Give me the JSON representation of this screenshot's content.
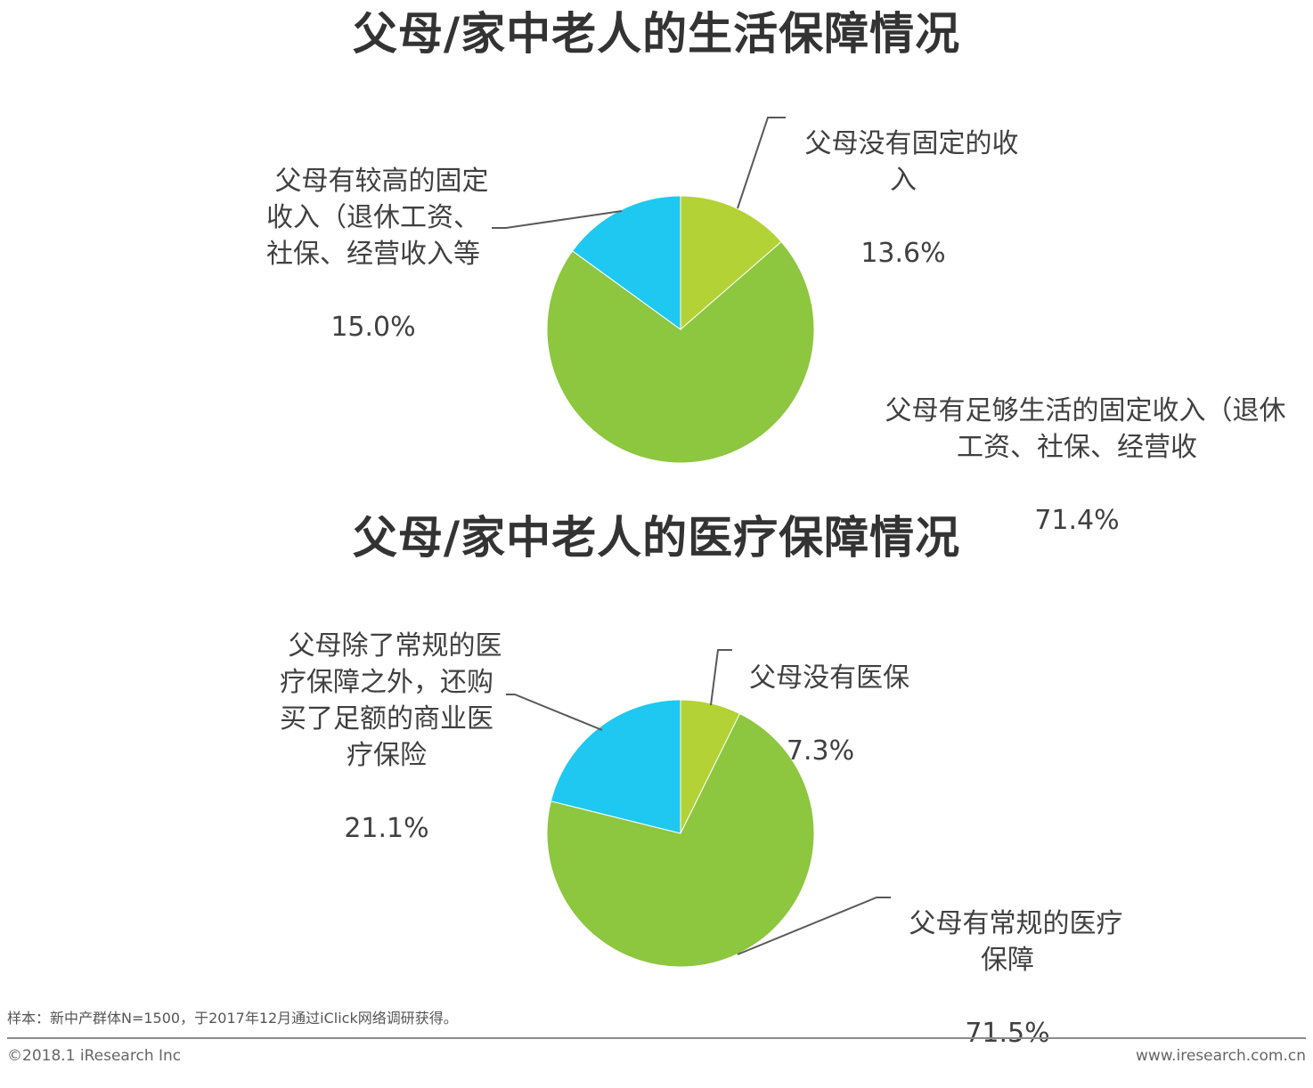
{
  "chart_data": [
    {
      "type": "pie",
      "title": "父母/家中老人的生活保障情况",
      "slices": [
        {
          "label": "父母没有固定的收\n入",
          "value": 13.6,
          "value_label": "13.6%",
          "color": "#b2d235"
        },
        {
          "label": "父母有足够生活的固定收入（退休\n工资、社保、经营收",
          "value": 71.4,
          "value_label": "71.4%",
          "color": "#8dc63f"
        },
        {
          "label": "父母有较高的固定\n收入（退休工资、\n社保、经营收入等",
          "value": 15.0,
          "value_label": "15.0%",
          "color": "#1ec8f0"
        }
      ]
    },
    {
      "type": "pie",
      "title": "父母/家中老人的医疗保障情况",
      "slices": [
        {
          "label": "父母没有医保",
          "value": 7.3,
          "value_label": "7.3%",
          "color": "#b2d235"
        },
        {
          "label": "父母有常规的医疗\n保障",
          "value": 71.5,
          "value_label": "71.5%",
          "color": "#8dc63f"
        },
        {
          "label": "父母除了常规的医\n疗保障之外，还购\n买了足额的商业医\n疗保险",
          "value": 21.1,
          "value_label": "21.1%",
          "color": "#1ec8f0"
        }
      ]
    }
  ],
  "footer": {
    "note": "样本：新中产群体N=1500，于2017年12月通过iClick网络调研获得。",
    "copyright": "©2018.1 iResearch Inc",
    "site": "www.iresearch.com.cn"
  }
}
